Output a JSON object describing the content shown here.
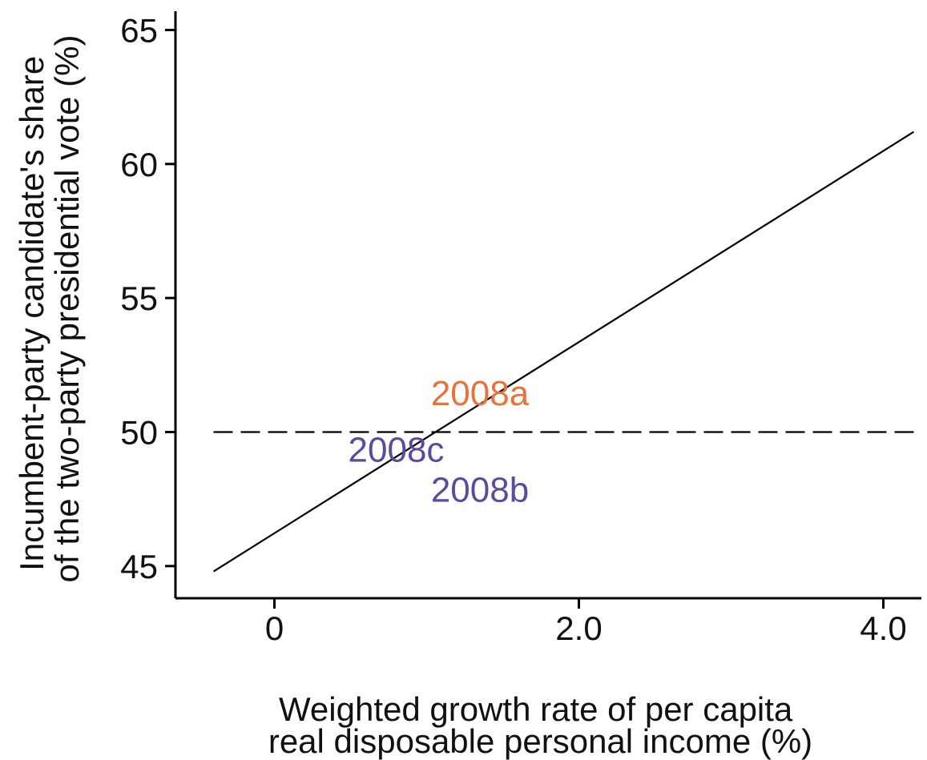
{
  "chart_data": {
    "type": "line",
    "title": "",
    "xlabel": [
      "Weighted growth rate of per capita",
      "real disposable personal income (%)"
    ],
    "ylabel": [
      "Incumbent-party candidate's share",
      "of the two-party presidential vote (%)"
    ],
    "xlim": [
      -0.65,
      4.25
    ],
    "ylim": [
      43.8,
      65.7
    ],
    "x_ticks": [
      {
        "value": 0,
        "label": "0"
      },
      {
        "value": 2.0,
        "label": "2.0"
      },
      {
        "value": 4.0,
        "label": "4.0"
      }
    ],
    "y_ticks": [
      {
        "value": 45,
        "label": "45"
      },
      {
        "value": 50,
        "label": "50"
      },
      {
        "value": 55,
        "label": "55"
      },
      {
        "value": 60,
        "label": "60"
      },
      {
        "value": 65,
        "label": "65"
      }
    ],
    "series": [
      {
        "style": "solid",
        "color": "#000000",
        "x": [
          -0.4,
          4.2
        ],
        "y": [
          44.8,
          61.2
        ]
      }
    ],
    "reference_lines": [
      {
        "orientation": "horizontal",
        "value": 50,
        "style": "dashed",
        "color": "#000000"
      }
    ],
    "annotations": [
      {
        "text": "2008a",
        "x": 1.35,
        "y": 51.0,
        "color": "#e8733a"
      },
      {
        "text": "2008c",
        "x": 0.8,
        "y": 48.9,
        "color": "#5e4a9c"
      },
      {
        "text": "2008b",
        "x": 1.35,
        "y": 47.4,
        "color": "#5e4a9c"
      }
    ],
    "grid": false,
    "legend": "none"
  }
}
